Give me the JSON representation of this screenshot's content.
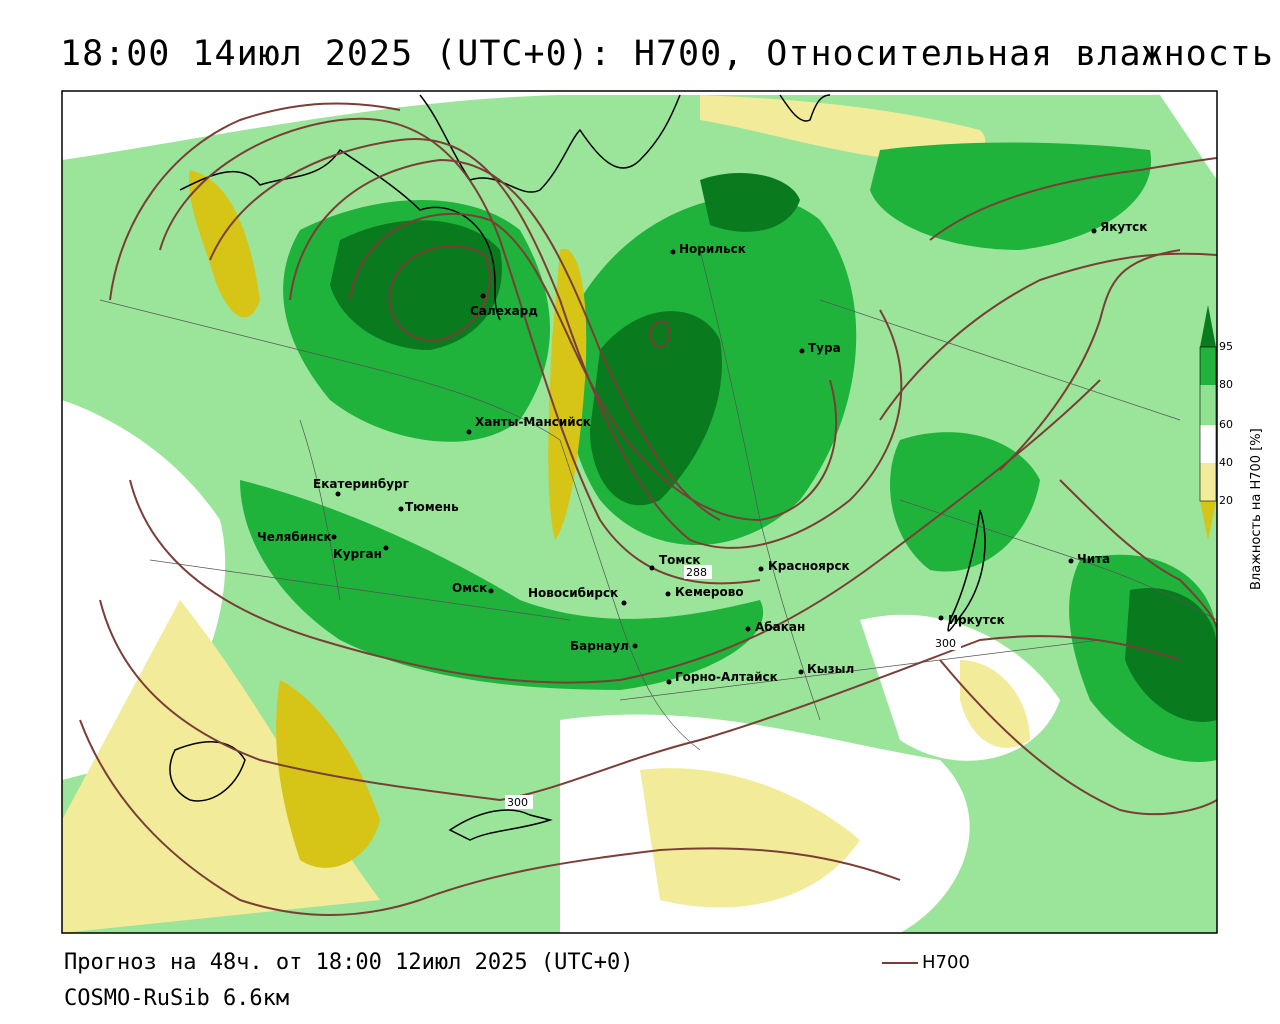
{
  "header": {
    "title": "18:00 14июл 2025 (UTC+0): H700, Относительная влажность"
  },
  "footer": {
    "forecast": "Прогноз на 48ч. от 18:00 12июл 2025 (UTC+0)",
    "model": "COSMO-RuSib 6.6км",
    "line_legend": "H700"
  },
  "colorbar": {
    "title": "Влажность на H700 [%]",
    "ticks": [
      "95",
      "80",
      "60",
      "40",
      "20"
    ],
    "colors": {
      "above_95": "#0a7a1e",
      "80_95": "#1fb33c",
      "60_80": "#8fe28f",
      "40_60": "#ffffff",
      "20_40": "#f2ec9a",
      "below_20": "#d6c417"
    }
  },
  "contour_color": "#7a3e36",
  "contour_labels": [
    "300",
    "288",
    "300"
  ],
  "cities": [
    {
      "name": "Норильск"
    },
    {
      "name": "Салехард"
    },
    {
      "name": "Тура"
    },
    {
      "name": "Якутск"
    },
    {
      "name": "Ханты-Мансийск"
    },
    {
      "name": "Екатеринбург"
    },
    {
      "name": "Тюмень"
    },
    {
      "name": "Челябинск"
    },
    {
      "name": "Курган"
    },
    {
      "name": "Омск"
    },
    {
      "name": "Новосибирск"
    },
    {
      "name": "Томск"
    },
    {
      "name": "Кемерово"
    },
    {
      "name": "Красноярск"
    },
    {
      "name": "Барнаул"
    },
    {
      "name": "Абакан"
    },
    {
      "name": "Горно-Алтайск"
    },
    {
      "name": "Кызыл"
    },
    {
      "name": "Иркутск"
    },
    {
      "name": "Чита"
    }
  ]
}
